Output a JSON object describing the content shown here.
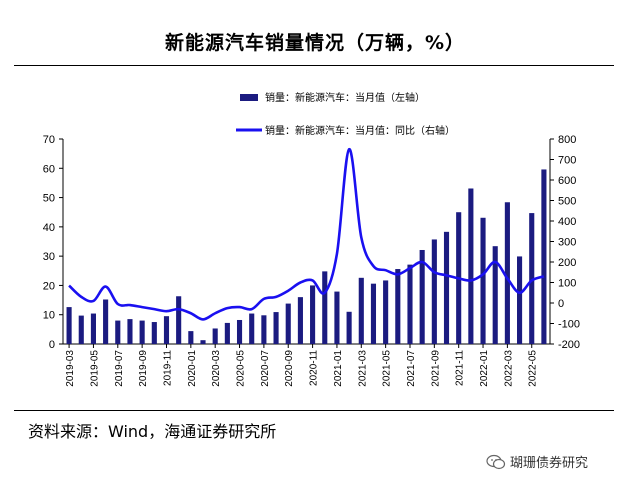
{
  "title": "新能源汽车销量情况（万辆，%）",
  "source": "资料来源：Wind，海通证券研究所",
  "watermark": "瑚珊债券研究",
  "colors": {
    "bar": "#1b1b80",
    "line": "#1a10f0",
    "axis": "#000000"
  },
  "chart_data": {
    "type": "bar+line",
    "title": "新能源汽车销量情况（万辆，%）",
    "categories": [
      "2019-03",
      "2019-04",
      "2019-05",
      "2019-06",
      "2019-07",
      "2019-08",
      "2019-09",
      "2019-10",
      "2019-11",
      "2019-12",
      "2020-01",
      "2020-02",
      "2020-03",
      "2020-04",
      "2020-05",
      "2020-06",
      "2020-07",
      "2020-08",
      "2020-09",
      "2020-10",
      "2020-11",
      "2020-12",
      "2021-01",
      "2021-02",
      "2021-03",
      "2021-04",
      "2021-05",
      "2021-06",
      "2021-07",
      "2021-08",
      "2021-09",
      "2021-10",
      "2021-11",
      "2021-12",
      "2022-01",
      "2022-02",
      "2022-03",
      "2022-04",
      "2022-05",
      "2022-06"
    ],
    "x_tick_labels": [
      "2019-03",
      "2019-05",
      "2019-07",
      "2019-09",
      "2019-11",
      "2020-01",
      "2020-03",
      "2020-05",
      "2020-07",
      "2020-09",
      "2020-11",
      "2021-01",
      "2021-03",
      "2021-05",
      "2021-07",
      "2021-09",
      "2021-11",
      "2022-01",
      "2022-03",
      "2022-05"
    ],
    "series": [
      {
        "name": "销量：新能源汽车：当月值（左轴）",
        "kind": "bar",
        "axis": "left",
        "values": [
          12.6,
          9.7,
          10.4,
          15.2,
          8.0,
          8.5,
          8.0,
          7.5,
          9.5,
          16.3,
          4.4,
          1.3,
          5.3,
          7.2,
          8.2,
          10.4,
          9.8,
          10.9,
          13.8,
          16.0,
          20.0,
          24.8,
          17.9,
          11.0,
          22.6,
          20.6,
          21.7,
          25.6,
          27.1,
          32.1,
          35.7,
          38.3,
          45.0,
          53.1,
          43.1,
          33.4,
          48.4,
          29.9,
          44.7,
          59.6
        ]
      },
      {
        "name": "销量：新能源汽车：当月值：同比（右轴）",
        "kind": "line",
        "axis": "right",
        "values": [
          85,
          30,
          10,
          80,
          -5,
          -10,
          -20,
          -30,
          -40,
          -30,
          -50,
          -80,
          -50,
          -25,
          -20,
          -30,
          20,
          30,
          60,
          100,
          110,
          50,
          240,
          750,
          320,
          180,
          160,
          140,
          170,
          200,
          150,
          135,
          120,
          110,
          140,
          200,
          120,
          50,
          110,
          130
        ]
      }
    ],
    "left_axis": {
      "min": 0,
      "max": 70,
      "ticks": [
        "0",
        "10",
        "20",
        "30",
        "40",
        "50",
        "60",
        "70"
      ]
    },
    "right_axis": {
      "min": -200,
      "max": 800,
      "ticks": [
        "-200",
        "-100",
        "0",
        "100",
        "200",
        "300",
        "400",
        "500",
        "600",
        "700",
        "800"
      ]
    },
    "legend": {
      "placement": "top-center"
    }
  }
}
